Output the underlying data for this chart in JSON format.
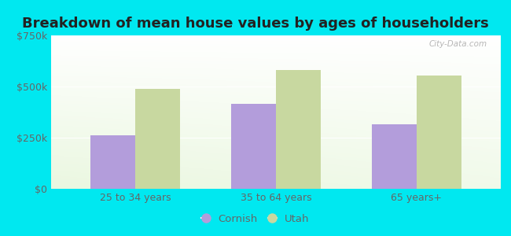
{
  "title": "Breakdown of mean house values by ages of householders",
  "categories": [
    "25 to 34 years",
    "35 to 64 years",
    "65 years+"
  ],
  "cornish_values": [
    260000,
    415000,
    315000
  ],
  "utah_values": [
    490000,
    580000,
    555000
  ],
  "ylim": [
    0,
    750000
  ],
  "yticks": [
    0,
    250000,
    500000,
    750000
  ],
  "ytick_labels": [
    "$0",
    "$250k",
    "$500k",
    "$750k"
  ],
  "cornish_color": "#b39ddb",
  "utah_color": "#c8d8a0",
  "background_color": "#00e8f0",
  "bar_width": 0.32,
  "legend_labels": [
    "Cornish",
    "Utah"
  ],
  "title_fontsize": 13,
  "tick_fontsize": 9,
  "tick_color": "#666666",
  "title_color": "#222222",
  "watermark": "City-Data.com"
}
